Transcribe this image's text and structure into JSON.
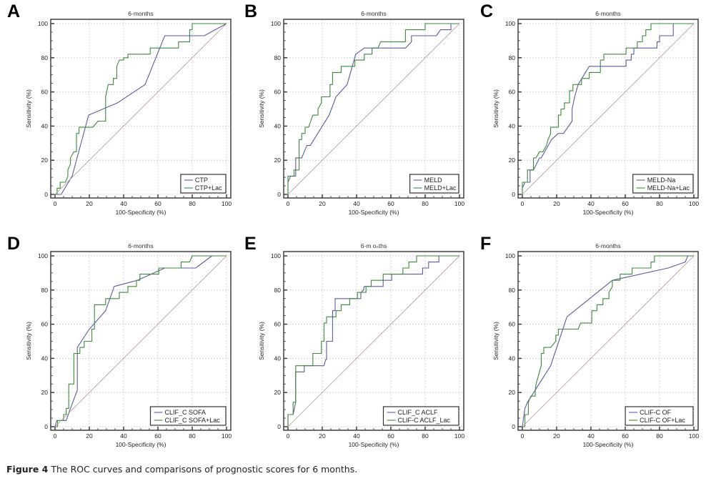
{
  "caption": {
    "label": "Figure 4",
    "text": " The ROC curves and comparisons of prognostic scores for 6 months."
  },
  "colors": {
    "score": "#5b5ba3",
    "score_lac": "#3d8a3d",
    "reference": "#b39393",
    "grid": "#c8c8c8",
    "frame": "#333333"
  },
  "chart_data": [
    {
      "panel": "A",
      "type": "line",
      "title": "6-months",
      "xlabel": "100-Specificity (%)",
      "ylabel": "Sensitivity (%)",
      "xlim": [
        0,
        100
      ],
      "ylim": [
        0,
        100
      ],
      "xticks": [
        0,
        20,
        40,
        60,
        80,
        100
      ],
      "yticks": [
        0,
        20,
        40,
        60,
        80,
        100
      ],
      "grid": true,
      "legend_position": "bottom-right",
      "series": [
        {
          "name": "CTP",
          "color_key": "score",
          "x": [
            0,
            3.6,
            10,
            19.6,
            36.4,
            52.5,
            64,
            87,
            100
          ],
          "y": [
            0,
            0,
            10.7,
            46.4,
            53.6,
            64.3,
            92.9,
            92.9,
            100
          ]
        },
        {
          "name": "CTP+Lac",
          "color_key": "score_lac",
          "x": [
            0,
            1.2,
            1.2,
            3,
            3,
            6,
            7.5,
            7.5,
            9,
            9,
            11,
            12.5,
            12.5,
            14,
            14,
            22,
            25,
            29.5,
            29.5,
            31,
            34,
            34,
            36,
            36,
            37.5,
            40,
            40,
            42.5,
            42.5,
            55.5,
            55.5,
            72,
            72,
            78.5,
            78.5,
            80,
            80,
            100
          ],
          "y": [
            0,
            0,
            3.6,
            3.6,
            7.1,
            7.1,
            10.7,
            14.3,
            17.9,
            21.4,
            25,
            25,
            35.7,
            35.7,
            39.3,
            39.3,
            42.9,
            42.9,
            57.1,
            64.3,
            64.3,
            67.9,
            67.9,
            75,
            78.6,
            78.6,
            80,
            80,
            82.1,
            82.1,
            85.7,
            85.7,
            89.3,
            89.3,
            96.4,
            96.4,
            100,
            100
          ]
        },
        {
          "name": "reference",
          "color_key": "reference",
          "x": [
            0,
            100
          ],
          "y": [
            0,
            100
          ],
          "in_legend": false
        }
      ]
    },
    {
      "panel": "B",
      "type": "line",
      "title": "6-months",
      "xlabel": "100-Specificity (%)",
      "ylabel": "Sensitivity (%)",
      "xlim": [
        0,
        100
      ],
      "ylim": [
        0,
        100
      ],
      "xticks": [
        0,
        20,
        40,
        60,
        80,
        100
      ],
      "yticks": [
        0,
        20,
        40,
        60,
        80,
        100
      ],
      "grid": true,
      "legend_position": "bottom-right",
      "series": [
        {
          "name": "MELD",
          "color_key": "score",
          "x": [
            0,
            0,
            1.5,
            4.5,
            4.5,
            8,
            11,
            13,
            20,
            24,
            28,
            34.5,
            39.5,
            44.5,
            68.5,
            72,
            72,
            86.5,
            89,
            95,
            95,
            100
          ],
          "y": [
            0,
            7.1,
            10.7,
            10.7,
            21.4,
            21.4,
            28.6,
            28.6,
            40,
            46.4,
            57.1,
            64.3,
            82.1,
            85.7,
            85.7,
            89.3,
            92.9,
            92.9,
            96.4,
            96.4,
            100,
            100
          ]
        },
        {
          "name": "MELD+Lac",
          "color_key": "score_lac",
          "x": [
            0,
            0,
            3.5,
            3.5,
            6.5,
            6.5,
            8,
            8,
            10,
            10,
            12,
            14.5,
            17.5,
            17.5,
            19.5,
            19.5,
            24.5,
            24.5,
            26,
            26,
            31,
            31,
            39,
            39,
            44.5,
            44.5,
            49,
            49,
            52.5,
            54,
            68.5,
            68.5,
            80,
            80,
            100
          ],
          "y": [
            0,
            10.7,
            10.7,
            14.3,
            14.3,
            32.1,
            32.1,
            35.7,
            35.7,
            39.3,
            39.3,
            46.4,
            46.4,
            50,
            53.6,
            57.1,
            57.1,
            64.3,
            64.3,
            71.4,
            71.4,
            75,
            75,
            78.6,
            78.6,
            82.1,
            82.1,
            85.7,
            85.7,
            89.3,
            89.3,
            96.4,
            96.4,
            100,
            100
          ]
        },
        {
          "name": "reference",
          "color_key": "reference",
          "x": [
            0,
            100
          ],
          "y": [
            0,
            100
          ],
          "in_legend": false
        }
      ]
    },
    {
      "panel": "C",
      "type": "line",
      "title": "6-months",
      "xlabel": "100-Specificity (%)",
      "ylabel": "Sensitivity (%)",
      "xlim": [
        0,
        100
      ],
      "ylim": [
        0,
        100
      ],
      "xticks": [
        0,
        20,
        40,
        60,
        80,
        100
      ],
      "yticks": [
        0,
        20,
        40,
        60,
        80,
        100
      ],
      "grid": true,
      "legend_position": "bottom-right",
      "series": [
        {
          "name": "MELD-Na",
          "color_key": "score",
          "x": [
            0,
            0,
            1.5,
            4.5,
            4.5,
            6.5,
            10,
            11,
            17,
            21,
            24,
            29,
            29,
            30.5,
            32.5,
            39,
            60.5,
            60.5,
            63.5,
            63.5,
            65,
            65,
            78.5,
            78.5,
            80,
            80,
            88,
            88,
            100
          ],
          "y": [
            0,
            3.6,
            7.1,
            7.1,
            14.3,
            14.3,
            21.4,
            21.4,
            32.1,
            35.7,
            35.7,
            42.9,
            50,
            57.1,
            64.3,
            75,
            75,
            78.6,
            78.6,
            82.1,
            82.1,
            85.7,
            85.7,
            89.3,
            89.3,
            92.9,
            92.9,
            100,
            100
          ]
        },
        {
          "name": "MELD-Na+Lac",
          "color_key": "score_lac",
          "x": [
            0,
            0,
            3,
            3,
            6.5,
            6.5,
            8,
            10,
            12,
            14,
            15,
            16.5,
            16.5,
            21,
            21,
            22.5,
            22.5,
            24.5,
            24.5,
            27.5,
            27.5,
            29.5,
            29.5,
            34.5,
            34.5,
            39,
            39,
            45.5,
            45.5,
            47.5,
            47.5,
            60.5,
            60.5,
            67,
            67,
            70,
            70,
            72,
            72,
            75,
            75,
            100
          ],
          "y": [
            0,
            7.1,
            7.1,
            14.3,
            14.3,
            21.4,
            21.4,
            25,
            25,
            28.6,
            32.1,
            35.7,
            39.3,
            39.3,
            46.4,
            46.4,
            50,
            50,
            53.6,
            53.6,
            60.7,
            60.7,
            64.3,
            64.3,
            67.9,
            67.9,
            71.4,
            71.4,
            78.6,
            78.6,
            82.1,
            82.1,
            85.7,
            85.7,
            89.3,
            89.3,
            92.9,
            92.9,
            96.4,
            96.4,
            100,
            100
          ]
        },
        {
          "name": "reference",
          "color_key": "reference",
          "x": [
            0,
            100
          ],
          "y": [
            0,
            100
          ],
          "in_legend": false
        }
      ]
    },
    {
      "panel": "D",
      "type": "line",
      "title": "6-months",
      "xlabel": "100-Specificity (%)",
      "ylabel": "Sensitivity (%)",
      "xlim": [
        0,
        100
      ],
      "ylim": [
        0,
        100
      ],
      "xticks": [
        0,
        20,
        40,
        60,
        80,
        100
      ],
      "yticks": [
        0,
        20,
        40,
        60,
        80,
        100
      ],
      "grid": true,
      "legend_position": "bottom-right",
      "series": [
        {
          "name": "CLIF_C SOFA",
          "color_key": "score",
          "x": [
            0,
            1,
            6.5,
            9,
            13,
            13,
            20,
            29.5,
            34.5,
            48,
            64,
            82,
            91.5,
            100
          ],
          "y": [
            0,
            3.6,
            3.6,
            10.7,
            21.4,
            46.4,
            57.1,
            67.9,
            82.1,
            85.7,
            92.9,
            92.9,
            100,
            100
          ]
        },
        {
          "name": "CLIF_C SOFA+Lac",
          "color_key": "score_lac",
          "x": [
            0,
            1.5,
            1.5,
            5,
            5,
            6.5,
            6.5,
            8,
            8,
            11,
            11,
            14.5,
            14.5,
            17,
            17,
            19.5,
            19.5,
            21.5,
            21.5,
            23,
            23,
            29.5,
            29.5,
            37.5,
            37.5,
            42.5,
            42.5,
            47.5,
            47.5,
            49.5,
            49.5,
            60.5,
            60.5,
            73.5,
            73.5,
            78.5,
            80,
            80,
            100
          ],
          "y": [
            0,
            0,
            3.6,
            3.6,
            7.1,
            7.1,
            10.7,
            10.7,
            25,
            25,
            42.9,
            42.9,
            46.4,
            46.4,
            50,
            50,
            50,
            50,
            57.1,
            57.1,
            71.4,
            71.4,
            75,
            75,
            78.6,
            78.6,
            82.1,
            82.1,
            85.7,
            85.7,
            89.3,
            89.3,
            92.9,
            92.9,
            96.4,
            96.4,
            100,
            100,
            100
          ]
        },
        {
          "name": "reference",
          "color_key": "reference",
          "x": [
            0,
            100
          ],
          "y": [
            0,
            100
          ],
          "in_legend": false
        }
      ]
    },
    {
      "panel": "E",
      "type": "line",
      "title": "6-m oₙths",
      "xlabel": "100-Specificity (%)",
      "ylabel": "Sensitivity (%)",
      "xlim": [
        0,
        100
      ],
      "ylim": [
        0,
        100
      ],
      "xticks": [
        0,
        20,
        40,
        60,
        80,
        100
      ],
      "yticks": [
        0,
        20,
        40,
        60,
        80,
        100
      ],
      "grid": true,
      "legend_position": "bottom-right",
      "series": [
        {
          "name": "CLIF_C ACLF",
          "color_key": "score",
          "x": [
            0,
            0,
            3,
            4.5,
            4.5,
            9.5,
            9.5,
            21,
            22,
            22.5,
            22.5,
            26,
            26,
            27.5,
            27.5,
            42.5,
            42.5,
            44,
            44.5,
            55.5,
            55.5,
            60.5,
            60.5,
            78.5,
            78.5,
            82,
            82,
            88,
            88,
            100
          ],
          "y": [
            0,
            7.1,
            7.1,
            14.3,
            32.1,
            32.1,
            35.7,
            35.7,
            39.3,
            39.3,
            50,
            50,
            67.9,
            67.9,
            75,
            75,
            78.6,
            80,
            82.1,
            82.1,
            85.7,
            85.7,
            89.3,
            89.3,
            92.9,
            92.9,
            96.4,
            96.4,
            100,
            100
          ]
        },
        {
          "name": "CLIF-C ACLF_Lac",
          "color_key": "score_lac",
          "x": [
            0,
            0,
            3,
            3,
            4.5,
            4.5,
            14.5,
            14.5,
            19.5,
            19.5,
            21,
            21,
            22.5,
            22.5,
            28,
            28,
            31,
            31,
            36,
            36,
            40.5,
            40.5,
            45.5,
            45.5,
            48.5,
            48.5,
            55.5,
            55.5,
            67,
            67,
            70.5,
            70.5,
            75,
            75,
            100
          ],
          "y": [
            0,
            7.1,
            7.1,
            14.3,
            14.3,
            35.7,
            35.7,
            42.9,
            42.9,
            50,
            50,
            60.7,
            60.7,
            64.3,
            64.3,
            67.9,
            67.9,
            71.4,
            71.4,
            75,
            75,
            78.6,
            78.6,
            82.1,
            82.1,
            85.7,
            85.7,
            89.3,
            89.3,
            92.9,
            92.9,
            96.4,
            96.4,
            100,
            100
          ]
        },
        {
          "name": "reference",
          "color_key": "reference",
          "x": [
            0,
            100
          ],
          "y": [
            0,
            100
          ],
          "in_legend": false
        }
      ]
    },
    {
      "panel": "F",
      "type": "line",
      "title": "6-months",
      "xlabel": "100-Specificity (%)",
      "ylabel": "Sensitivity (%)",
      "xlim": [
        0,
        100
      ],
      "ylim": [
        0,
        100
      ],
      "xticks": [
        0,
        20,
        40,
        60,
        80,
        100
      ],
      "yticks": [
        0,
        20,
        40,
        60,
        80,
        100
      ],
      "grid": true,
      "legend_position": "bottom-right",
      "series": [
        {
          "name": "CLIF-C OF",
          "color_key": "score",
          "x": [
            0,
            1.5,
            3,
            16.5,
            26,
            52.5,
            85,
            95,
            96.5,
            100
          ],
          "y": [
            0,
            10.7,
            14.3,
            35.7,
            64.3,
            85.7,
            92.9,
            96.4,
            100,
            100
          ]
        },
        {
          "name": "CLIF-C OF+Lac",
          "color_key": "score_lac",
          "x": [
            0,
            1.5,
            1.5,
            3.5,
            3.5,
            5,
            7.5,
            7.5,
            8,
            9,
            10,
            11,
            11,
            12.5,
            12.5,
            16.5,
            19.5,
            19.5,
            21,
            21,
            32.5,
            34,
            34,
            40.5,
            40.5,
            43.5,
            43.5,
            47,
            47,
            50.5,
            50.5,
            52.5,
            52.5,
            57,
            57,
            64,
            64,
            75,
            75,
            77,
            77,
            100
          ],
          "y": [
            0,
            0,
            7.1,
            7.1,
            14.3,
            17.9,
            17.9,
            21.4,
            25,
            28.6,
            32.1,
            35.7,
            42.9,
            42.9,
            46.4,
            46.4,
            50,
            53.6,
            53.6,
            57.1,
            57.1,
            60.7,
            60.7,
            60.7,
            67.9,
            67.9,
            71.4,
            71.4,
            75,
            75,
            78.6,
            82.1,
            85.7,
            85.7,
            89.3,
            89.3,
            92.9,
            92.9,
            96.4,
            96.4,
            100,
            100
          ]
        },
        {
          "name": "reference",
          "color_key": "reference",
          "x": [
            0,
            100
          ],
          "y": [
            0,
            100
          ],
          "in_legend": false
        }
      ]
    }
  ]
}
